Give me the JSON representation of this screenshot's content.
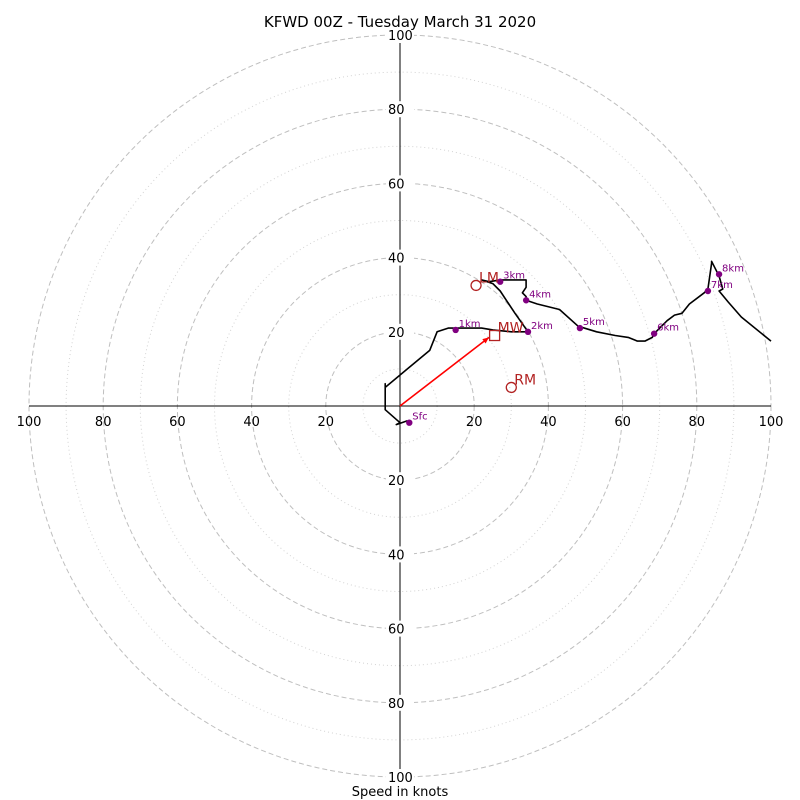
{
  "chart_data": {
    "type": "hodograph",
    "title": "KFWD 00Z - Tuesday March 31 2020",
    "xlabel": "Speed in knots",
    "ylabel": "",
    "xlim": [
      -100,
      100
    ],
    "ylim": [
      -100,
      100
    ],
    "tick_labels": [
      "100",
      "80",
      "60",
      "40",
      "20",
      "20",
      "40",
      "60",
      "80",
      "100"
    ],
    "rings_major": [
      20,
      40,
      60,
      80,
      100
    ],
    "rings_minor": [
      10,
      30,
      50,
      70,
      90
    ],
    "grid": true,
    "hodograph_line": [
      [
        2,
        -4
      ],
      [
        -1,
        -5
      ],
      [
        0,
        -4.5
      ],
      [
        -4,
        -1
      ],
      [
        -4,
        0
      ],
      [
        -4,
        3
      ],
      [
        -4,
        6
      ],
      [
        -4,
        5
      ],
      [
        2,
        10
      ],
      [
        8,
        15
      ],
      [
        10,
        20
      ],
      [
        13,
        21
      ],
      [
        18,
        21
      ],
      [
        22,
        21
      ],
      [
        25,
        20.5
      ],
      [
        30,
        20
      ],
      [
        34.5,
        20
      ],
      [
        31,
        25
      ],
      [
        27,
        31
      ],
      [
        25,
        33
      ],
      [
        22,
        34
      ],
      [
        24,
        33.5
      ],
      [
        27,
        34
      ],
      [
        30,
        34
      ],
      [
        34,
        34
      ],
      [
        34,
        32
      ],
      [
        33,
        30.5
      ],
      [
        34,
        29.5
      ],
      [
        34,
        28.5
      ],
      [
        37,
        27.5
      ],
      [
        43,
        26
      ],
      [
        48,
        21.5
      ],
      [
        53,
        20
      ],
      [
        58,
        19
      ],
      [
        61.5,
        18.5
      ],
      [
        64,
        17.5
      ],
      [
        66,
        17.5
      ],
      [
        68,
        18.5
      ],
      [
        68.5,
        19.5
      ],
      [
        72,
        23
      ],
      [
        74,
        24.5
      ],
      [
        76,
        25
      ],
      [
        78,
        27.5
      ],
      [
        82,
        30.5
      ],
      [
        83,
        31.5
      ],
      [
        84,
        38.5
      ],
      [
        84,
        39
      ],
      [
        86,
        35
      ],
      [
        87,
        31.5
      ],
      [
        86,
        31
      ],
      [
        88.5,
        28
      ],
      [
        92,
        24
      ],
      [
        100,
        17.5
      ]
    ],
    "height_markers": [
      {
        "label": "Sfc",
        "u": 2.5,
        "v": -4.5
      },
      {
        "label": "1km",
        "u": 15,
        "v": 20.5
      },
      {
        "label": "2km",
        "u": 34.5,
        "v": 20
      },
      {
        "label": "3km",
        "u": 27,
        "v": 33.5
      },
      {
        "label": "4km",
        "u": 34,
        "v": 28.5
      },
      {
        "label": "5km",
        "u": 48.5,
        "v": 21
      },
      {
        "label": "6km",
        "u": 68.5,
        "v": 19.5
      },
      {
        "label": "7km",
        "u": 83,
        "v": 31
      },
      {
        "label": "8km",
        "u": 86,
        "v": 35.5
      }
    ],
    "storm_motion": [
      {
        "label": "LM",
        "u": 20.5,
        "v": 32.5,
        "marker": "circle"
      },
      {
        "label": "MW",
        "u": 25.5,
        "v": 19,
        "marker": "square"
      },
      {
        "label": "RM",
        "u": 30,
        "v": 5,
        "marker": "circle"
      }
    ],
    "mean_wind_vector": {
      "u": 24,
      "v": 18.5
    },
    "colors": {
      "hodograph": "#000000",
      "markers": "#800080",
      "storm_motion": "#b22222",
      "vector": "#ff0000",
      "major_grid": "#bfbfbf",
      "minor_grid": "#d3d3d3"
    }
  }
}
